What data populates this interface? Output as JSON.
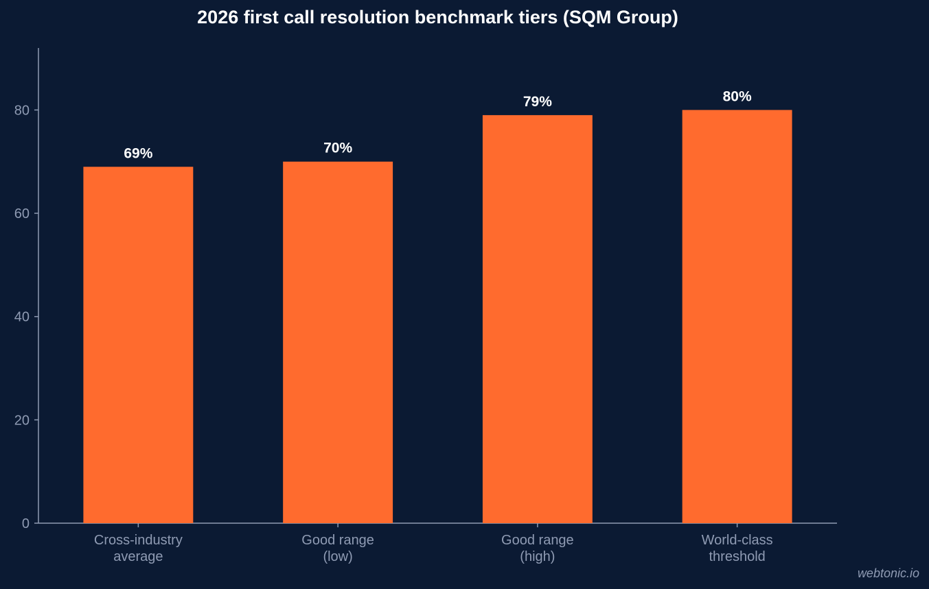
{
  "chart_data": {
    "type": "bar",
    "title": "2026 first call resolution benchmark tiers (SQM Group)",
    "categories": [
      [
        "Cross-industry",
        "average"
      ],
      [
        "Good range",
        "(low)"
      ],
      [
        "Good range",
        "(high)"
      ],
      [
        "World-class",
        "threshold"
      ]
    ],
    "values": [
      69,
      70,
      79,
      80
    ],
    "value_labels": [
      "69%",
      "70%",
      "79%",
      "80%"
    ],
    "xlabel": "",
    "ylabel": "",
    "ylim": [
      0,
      92
    ],
    "yticks": [
      0,
      20,
      40,
      60,
      80
    ],
    "grid": false,
    "colors": {
      "background": "#0b1a33",
      "bar": "#ff6b2e",
      "axis": "#8f9bb3",
      "tick_label": "#8f9bb3",
      "value_label": "#ffffff",
      "title": "#ffffff"
    }
  },
  "watermark": "webtonic.io"
}
